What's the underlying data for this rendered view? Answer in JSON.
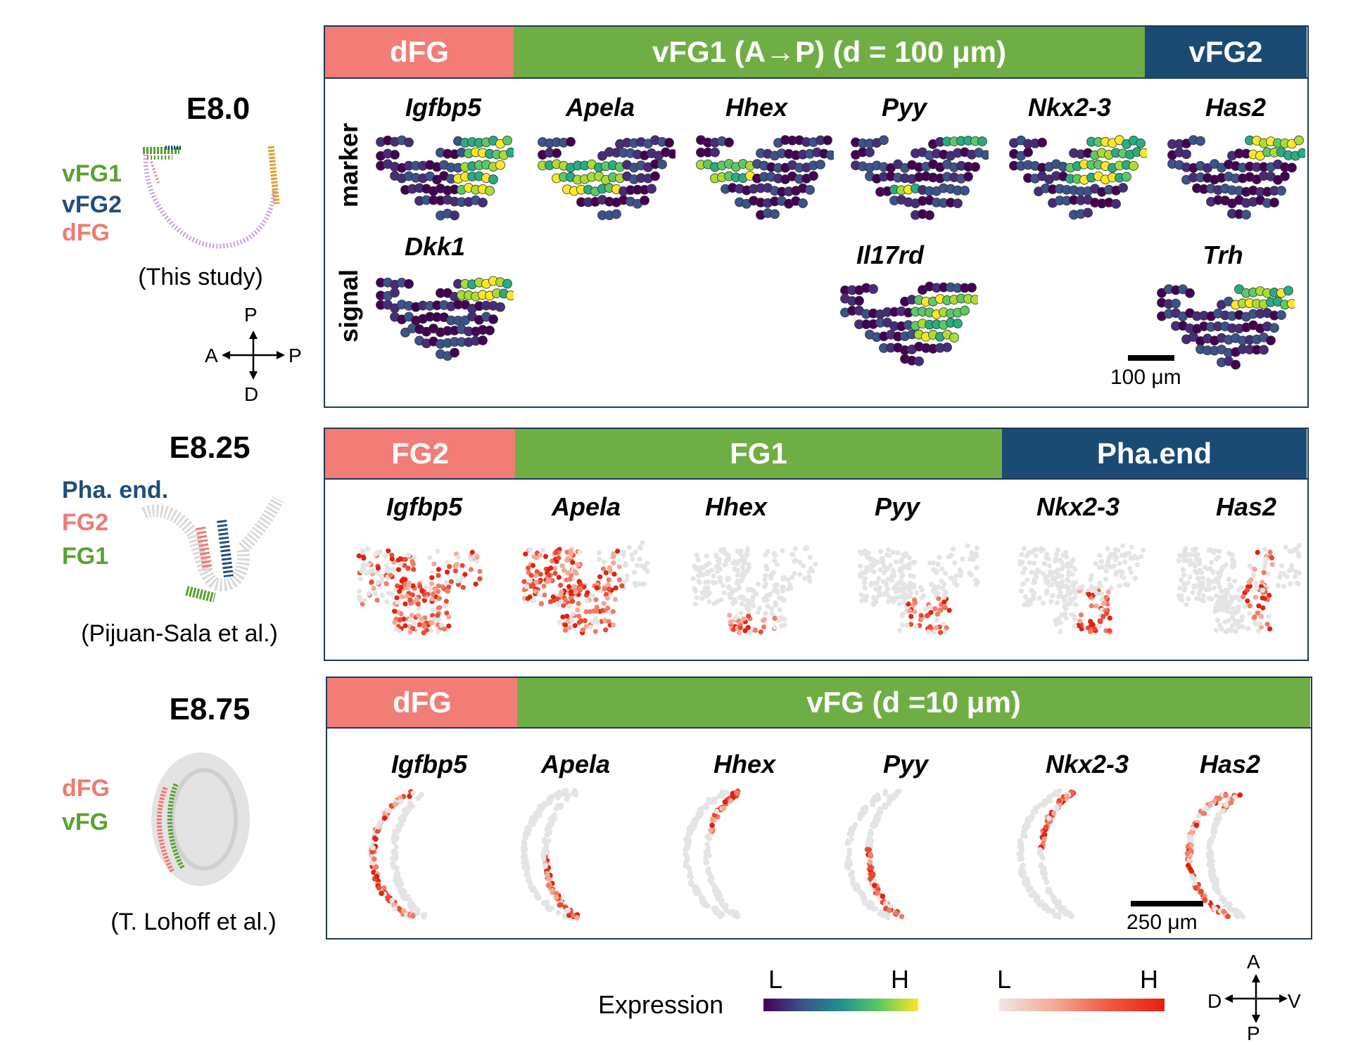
{
  "rows": [
    {
      "stage": "E8.0",
      "legend": [
        {
          "text": "vFG1",
          "color": "#5aa132"
        },
        {
          "text": "vFG2",
          "color": "#1f4e79"
        },
        {
          "text": "dFG",
          "color": "#f07a72"
        }
      ],
      "citation": "(This study)",
      "compass": {
        "top": "P",
        "left": "A",
        "right": "P",
        "bottom": "D"
      },
      "header": [
        {
          "text": "dFG",
          "color": "#f27c76"
        },
        {
          "text": "vFG1 (A→P) (d = 100 μm)",
          "color": "#6fae45"
        },
        {
          "text": "vFG2",
          "color": "#1b4b73"
        }
      ],
      "row_labels": [
        "marker",
        "signal"
      ],
      "marker_genes": [
        "Igfbp5",
        "Apela",
        "Hhex",
        "Pyy",
        "Nkx2-3",
        "Has2"
      ],
      "signal_genes": [
        "Dkk1",
        "Il17rd",
        "Trh"
      ],
      "scalebar": "100 μm"
    },
    {
      "stage": "E8.25",
      "legend": [
        {
          "text": "Pha. end.",
          "color": "#1f4e79"
        },
        {
          "text": "FG2",
          "color": "#f07a72"
        },
        {
          "text": "FG1",
          "color": "#5aa132"
        }
      ],
      "citation": "(Pijuan-Sala et al.)",
      "header": [
        {
          "text": "FG2",
          "color": "#f27c76"
        },
        {
          "text": "FG1",
          "color": "#6fae45"
        },
        {
          "text": "Pha.end",
          "color": "#1b4b73"
        }
      ],
      "genes": [
        "Igfbp5",
        "Apela",
        "Hhex",
        "Pyy",
        "Nkx2-3",
        "Has2"
      ]
    },
    {
      "stage": "E8.75",
      "legend": [
        {
          "text": "dFG",
          "color": "#f07a72"
        },
        {
          "text": "vFG",
          "color": "#5aa132"
        }
      ],
      "citation": "(T. Lohoff et al.)",
      "header": [
        {
          "text": "dFG",
          "color": "#f27c76"
        },
        {
          "text": "vFG (d =10 μm)",
          "color": "#6fae45"
        }
      ],
      "genes": [
        "Igfbp5",
        "Apela",
        "Hhex",
        "Pyy",
        "Nkx2-3",
        "Has2"
      ],
      "scalebar": "250 μm"
    }
  ],
  "expression_legend": {
    "title": "Expression",
    "low": "L",
    "high": "H",
    "viridis_low": "L",
    "viridis_high": "H",
    "reds_low": "L",
    "reds_high": "H"
  },
  "bottom_compass": {
    "top": "A",
    "left": "D",
    "right": "V",
    "bottom": "P"
  }
}
